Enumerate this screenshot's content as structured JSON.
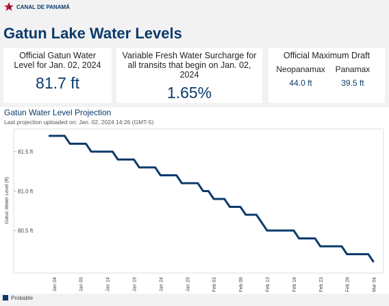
{
  "header": {
    "logo": "CANAL DE PANAMÁ",
    "title": "Gatun Lake Water Levels"
  },
  "cards": [
    {
      "label": "Official Gatun Water Level for Jan. 02, 2024",
      "value": "81.7 ft"
    },
    {
      "label": "Variable Fresh Water Surcharge for all transits that begin on Jan. 02, 2024",
      "value": "1.65%"
    },
    {
      "label": "Official Maximum Draft",
      "items": [
        {
          "name": "Neopanamax",
          "value": "44.0 ft"
        },
        {
          "name": "Panamax",
          "value": "39.5 ft"
        }
      ]
    }
  ],
  "chart_data": {
    "type": "line",
    "title": "Gatun Water Level Projection",
    "subtitle": "Last projection uploaded on: Jan. 02, 2024 14:26 (GMT-5)",
    "y_label": "Gatun Water Level (ft)",
    "categories": [
      null,
      "Jan 04",
      null,
      null,
      null,
      null,
      "Jan 09",
      null,
      null,
      null,
      null,
      "Jan 14",
      null,
      null,
      null,
      null,
      "Jan 19",
      null,
      null,
      null,
      null,
      "Jan 24",
      null,
      null,
      null,
      null,
      "Jan 29",
      null,
      null,
      null,
      null,
      "Feb 03",
      null,
      null,
      null,
      null,
      "Feb 08",
      null,
      null,
      null,
      null,
      "Feb 13",
      null,
      null,
      null,
      null,
      "Feb 18",
      null,
      null,
      null,
      null,
      "Feb 23",
      null,
      null,
      null,
      null,
      "Feb 28",
      null,
      null,
      null,
      null,
      "Mar 04"
    ],
    "series": [
      {
        "name": "Probable",
        "color": "#0b3a6b",
        "values": [
          81.7,
          81.7,
          81.7,
          81.7,
          81.6,
          81.6,
          81.6,
          81.6,
          81.5,
          81.5,
          81.5,
          81.5,
          81.5,
          81.4,
          81.4,
          81.4,
          81.4,
          81.3,
          81.3,
          81.3,
          81.3,
          81.2,
          81.2,
          81.2,
          81.2,
          81.1,
          81.1,
          81.1,
          81.1,
          81.0,
          81.0,
          80.9,
          80.9,
          80.9,
          80.8,
          80.8,
          80.8,
          80.7,
          80.7,
          80.7,
          80.6,
          80.5,
          80.5,
          80.5,
          80.5,
          80.5,
          80.5,
          80.4,
          80.4,
          80.4,
          80.4,
          80.3,
          80.3,
          80.3,
          80.3,
          80.3,
          80.2,
          80.2,
          80.2,
          80.2,
          80.2,
          80.1
        ]
      }
    ],
    "ylim": [
      80.0,
      81.8
    ],
    "yticks": [
      {
        "value": 80.5,
        "label": "80.5 ft"
      },
      {
        "value": 81.0,
        "label": "81.0 ft"
      },
      {
        "value": 81.5,
        "label": "81.5 ft"
      }
    ],
    "legend": "bottom-left"
  }
}
